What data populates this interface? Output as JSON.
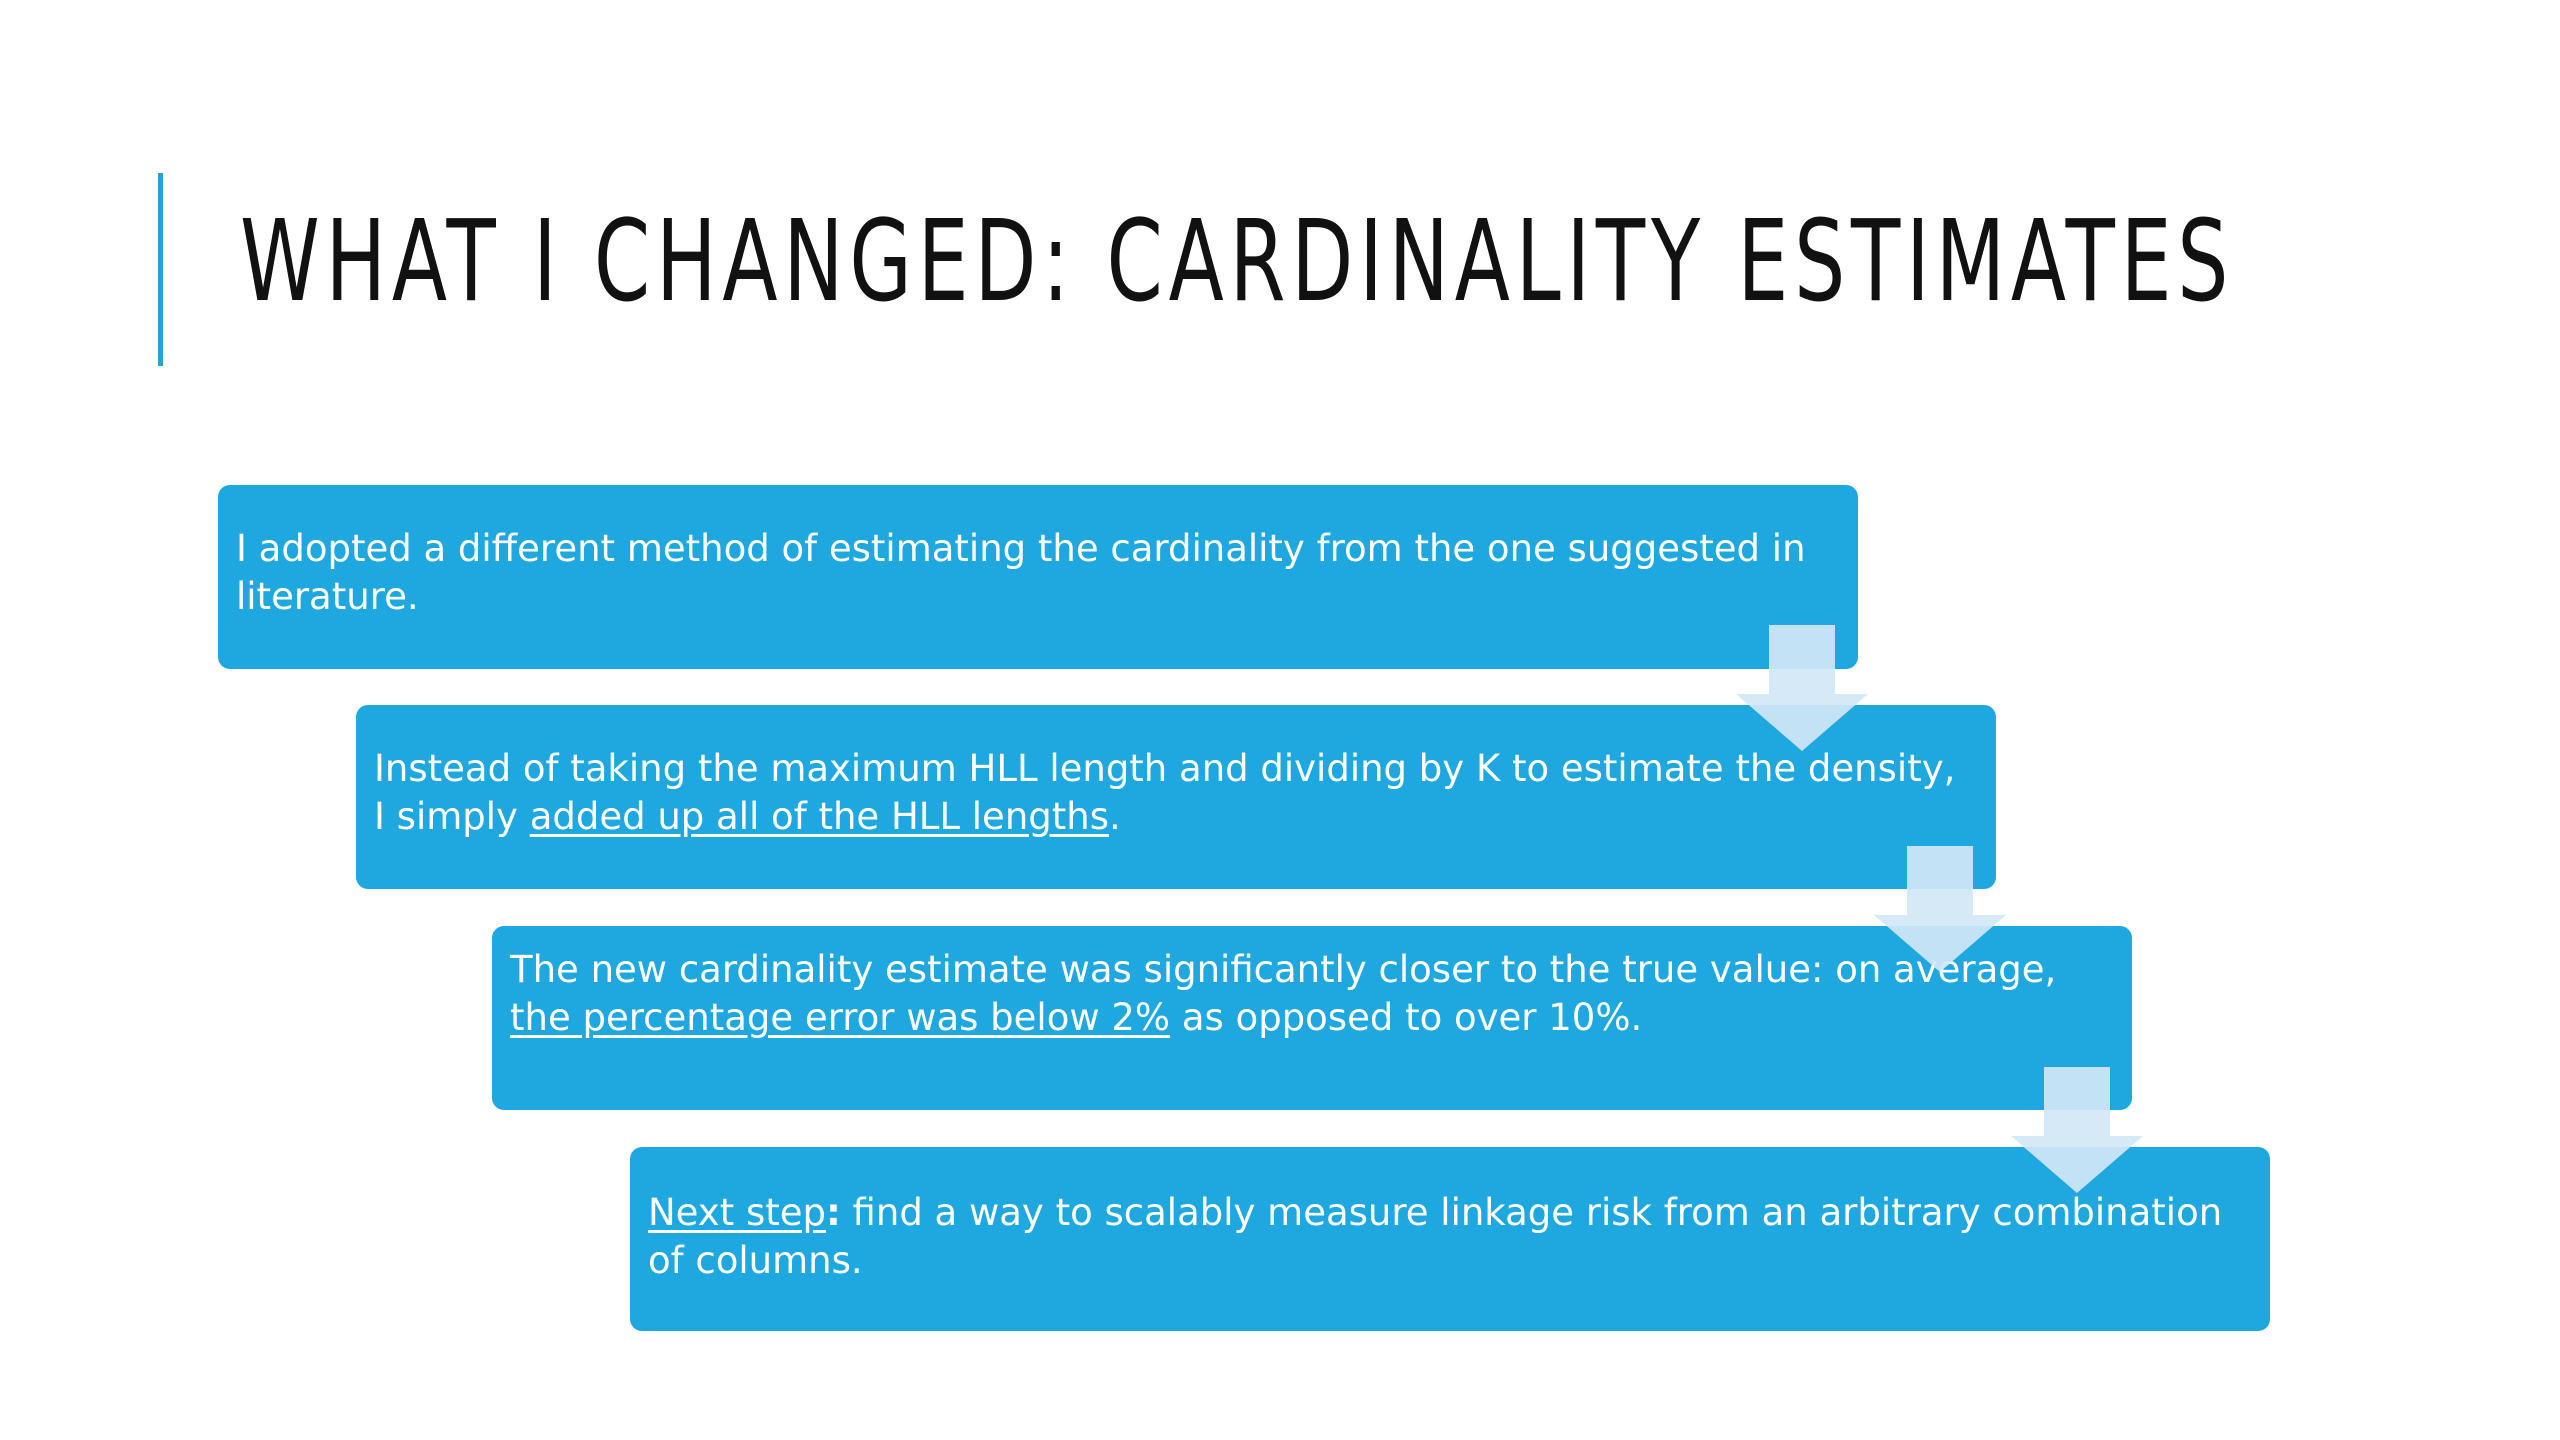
{
  "slide": {
    "title": "WHAT I CHANGED: CARDINALITY ESTIMATES",
    "colors": {
      "box_fill": "#1fa8df",
      "accent": "#2ba0d6",
      "arrow_fill": "#d3e7f6",
      "title_text": "#111111"
    },
    "steps": [
      {
        "text": "I adopted a different method of estimating the cardinality from the one suggested in literature."
      },
      {
        "text_before": "Instead of taking the maximum HLL length and dividing by K to estimate the density, I simply ",
        "text_underlined": "added up all of the HLL lengths",
        "text_after": "."
      },
      {
        "text_before": "The new cardinality estimate was significantly closer to the true value: on average, ",
        "text_underlined": "the percentage error was below 2%",
        "text_after": " as opposed to over 10%."
      },
      {
        "label_underlined": "Next step",
        "label_bold": ":",
        "text_after": " find a way to scalably measure linkage risk from an arbitrary combination of columns."
      }
    ],
    "connector_icons": [
      "arrow-down-icon",
      "arrow-down-icon",
      "arrow-down-icon"
    ]
  }
}
